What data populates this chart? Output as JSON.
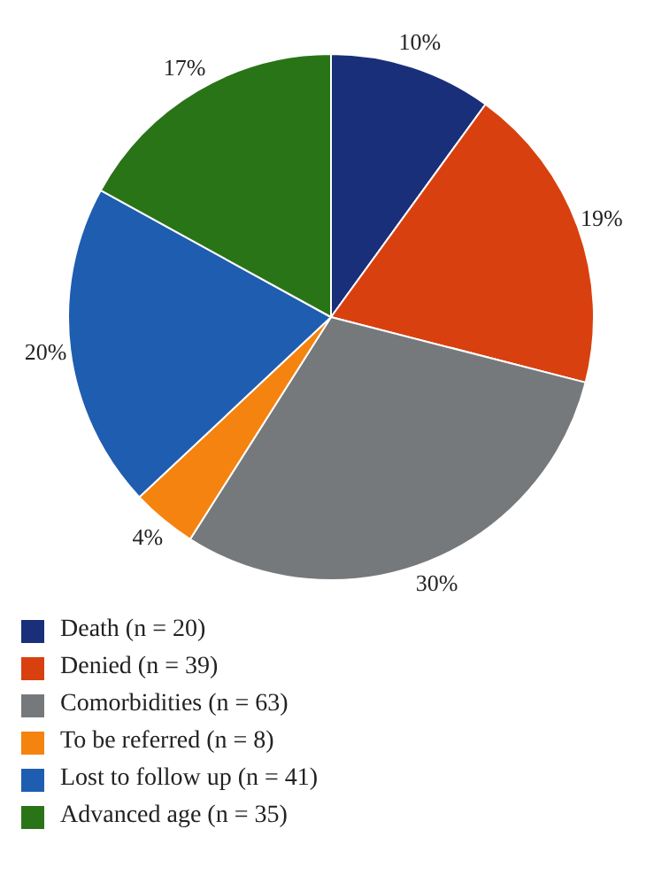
{
  "chart_data": {
    "type": "pie",
    "categories": [
      "Death (n = 20)",
      "Denied (n = 39)",
      "Comorbidities (n = 63)",
      "To be referred (n = 8)",
      "Lost to follow up (n = 41)",
      "Advanced age (n = 35)"
    ],
    "values": [
      10,
      19,
      30,
      4,
      20,
      17
    ],
    "value_labels": [
      "10%",
      "19%",
      "30%",
      "4%",
      "20%",
      "17%"
    ],
    "colors": [
      "#1a2f7a",
      "#d9400f",
      "#76797b",
      "#f5830f",
      "#1f5db0",
      "#2a7418"
    ],
    "legend": "bottom"
  }
}
